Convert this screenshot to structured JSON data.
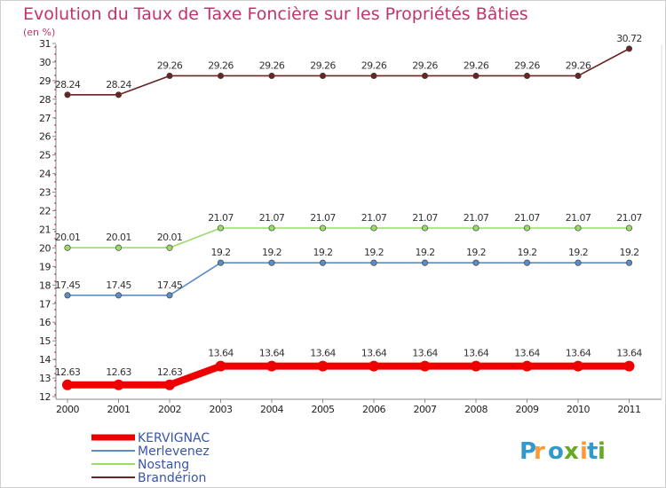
{
  "chart_data": {
    "type": "line",
    "title": "Evolution du Taux de Taxe Foncière sur les Propriétés Bâties",
    "ylabel": "(en %)",
    "xlabel": "",
    "ylim": [
      12,
      31
    ],
    "yticks": [
      12,
      13,
      14,
      15,
      16,
      17,
      18,
      19,
      20,
      21,
      22,
      23,
      24,
      25,
      26,
      27,
      28,
      29,
      30,
      31
    ],
    "categories": [
      "2000",
      "2001",
      "2002",
      "2003",
      "2004",
      "2005",
      "2006",
      "2007",
      "2008",
      "2009",
      "2010",
      "2011"
    ],
    "series": [
      {
        "name": "Brandérion",
        "color": "#6b2323",
        "values": [
          28.24,
          28.24,
          29.26,
          29.26,
          29.26,
          29.26,
          29.26,
          29.26,
          29.26,
          29.26,
          29.26,
          30.72
        ],
        "labels": [
          "28.24",
          "28.24",
          "29.26",
          "29.26",
          "29.26",
          "29.26",
          "29.26",
          "29.26",
          "29.26",
          "29.26",
          "29.26",
          "30.72"
        ]
      },
      {
        "name": "Nostang",
        "color": "#99dd66",
        "values": [
          20.01,
          20.01,
          20.01,
          21.07,
          21.07,
          21.07,
          21.07,
          21.07,
          21.07,
          21.07,
          21.07,
          21.07
        ],
        "labels": [
          "20.01",
          "20.01",
          "20.01",
          "21.07",
          "21.07",
          "21.07",
          "21.07",
          "21.07",
          "21.07",
          "21.07",
          "21.07",
          "21.07"
        ]
      },
      {
        "name": "Merlevenez",
        "color": "#5a8cc6",
        "values": [
          17.45,
          17.45,
          17.45,
          19.2,
          19.2,
          19.2,
          19.2,
          19.2,
          19.2,
          19.2,
          19.2,
          19.2
        ],
        "labels": [
          "17.45",
          "17.45",
          "17.45",
          "19.2",
          "19.2",
          "19.2",
          "19.2",
          "19.2",
          "19.2",
          "19.2",
          "19.2",
          "19.2"
        ]
      },
      {
        "name": "KERVIGNAC",
        "color": "#ee0000",
        "values": [
          12.63,
          12.63,
          12.63,
          13.64,
          13.64,
          13.64,
          13.64,
          13.64,
          13.64,
          13.64,
          13.64,
          13.64
        ],
        "labels": [
          "12.63",
          "12.63",
          "12.63",
          "13.64",
          "13.64",
          "13.64",
          "13.64",
          "13.64",
          "13.64",
          "13.64",
          "13.64",
          "13.64"
        ]
      }
    ],
    "legend": [
      "KERVIGNAC",
      "Merlevenez",
      "Nostang",
      "Brandérion"
    ],
    "legend_position": "bottom-left",
    "grid": false
  },
  "logo": {
    "letters": [
      "P",
      "r",
      "o",
      "x",
      "i",
      "t",
      "i"
    ],
    "colors": [
      "#3399cc",
      "#ff9933",
      "#3399cc",
      "#66aa22",
      "#ff9933",
      "#3399cc",
      "#66aa22"
    ]
  }
}
